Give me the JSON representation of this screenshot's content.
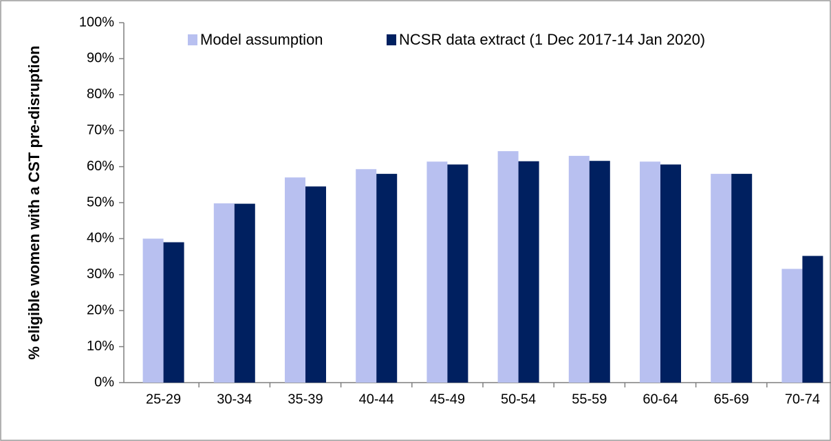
{
  "chart_data": {
    "type": "bar",
    "y_label": "% eligible women with a CST pre-disruption",
    "categories": [
      "25-29",
      "30-34",
      "35-39",
      "40-44",
      "45-49",
      "50-54",
      "55-59",
      "60-64",
      "65-69",
      "70-74"
    ],
    "series": [
      {
        "name": "Model assumption",
        "color": "#b8c0f0",
        "values": [
          40,
          49.8,
          57,
          59.3,
          61.4,
          64.3,
          63,
          61.4,
          58,
          31.6
        ]
      },
      {
        "name": "NCSR data extract (1 Dec 2017-14 Jan 2020)",
        "color": "#002060",
        "values": [
          39,
          49.7,
          54.5,
          58,
          60.6,
          61.5,
          61.6,
          60.6,
          58,
          35.2
        ]
      }
    ],
    "ylim": [
      0,
      100
    ],
    "yticks": [
      {
        "value": 0,
        "label": "0%"
      },
      {
        "value": 10,
        "label": "10%"
      },
      {
        "value": 20,
        "label": "20%"
      },
      {
        "value": 30,
        "label": "30%"
      },
      {
        "value": 40,
        "label": "40%"
      },
      {
        "value": 50,
        "label": "50%"
      },
      {
        "value": 60,
        "label": "60%"
      },
      {
        "value": 70,
        "label": "70%"
      },
      {
        "value": 80,
        "label": "80%"
      },
      {
        "value": 90,
        "label": "90%"
      },
      {
        "value": 100,
        "label": "100%"
      }
    ],
    "grid": false,
    "legend": "top"
  }
}
